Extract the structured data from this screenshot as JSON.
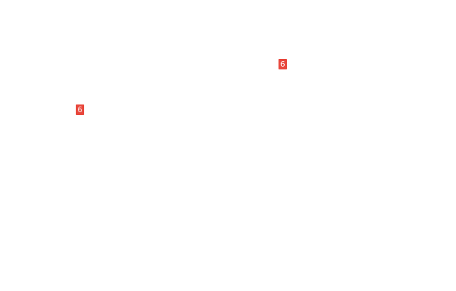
{
  "colors": {
    "page_background": "#ffffff",
    "badge_background": "#e8473c",
    "badge_text": "#ffffff"
  },
  "marks": [
    {
      "label": "6"
    },
    {
      "label": "6"
    }
  ]
}
